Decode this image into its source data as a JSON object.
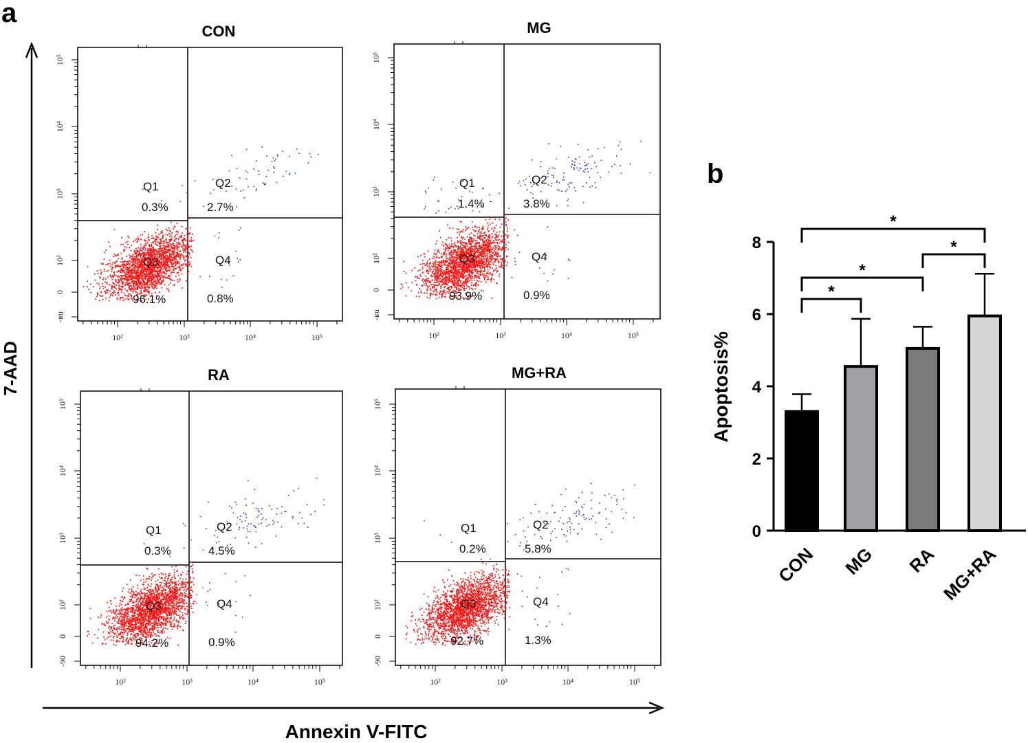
{
  "figure": {
    "panel_a_label": "a",
    "panel_b_label": "b",
    "x_axis_label": "Annexin V-FITC",
    "y_axis_label": "7-AAD"
  },
  "chart_data": [
    {
      "type": "scatter",
      "title": "CON",
      "xlabel": "Annexin V-FITC",
      "ylabel": "7-AAD",
      "x_ticks": [
        "10²",
        "10³",
        "10⁴",
        "10⁵"
      ],
      "y_ticks": [
        "-ʁu",
        "0",
        "10²",
        "10³",
        "10⁴",
        "10⁵"
      ],
      "quadrants": [
        {
          "name": "Q1",
          "percent": "0.3%"
        },
        {
          "name": "Q2",
          "percent": "2.7%"
        },
        {
          "name": "Q3",
          "percent": "96.1%"
        },
        {
          "name": "Q4",
          "percent": "0.8%"
        }
      ]
    },
    {
      "type": "scatter",
      "title": "MG",
      "xlabel": "Annexin V-FITC",
      "ylabel": "7-AAD",
      "x_ticks": [
        "10²",
        "10³",
        "10⁴",
        "10⁵"
      ],
      "y_ticks": [
        "-ʁu",
        "0",
        "10²",
        "10³",
        "10⁴",
        "10⁵"
      ],
      "quadrants": [
        {
          "name": "Q1",
          "percent": "1.4%"
        },
        {
          "name": "Q2",
          "percent": "3.8%"
        },
        {
          "name": "Q3",
          "percent": "93.9%"
        },
        {
          "name": "Q4",
          "percent": "0.9%"
        }
      ]
    },
    {
      "type": "scatter",
      "title": "RA",
      "xlabel": "Annexin V-FITC",
      "ylabel": "7-AAD",
      "x_ticks": [
        "10²",
        "10³",
        "10⁴",
        "10⁵"
      ],
      "y_ticks": [
        "-90",
        "0",
        "10²",
        "10³",
        "10⁴",
        "10⁵"
      ],
      "quadrants": [
        {
          "name": "Q1",
          "percent": "0.3%"
        },
        {
          "name": "Q2",
          "percent": "4.5%"
        },
        {
          "name": "Q3",
          "percent": "94.2%"
        },
        {
          "name": "Q4",
          "percent": "0.9%"
        }
      ]
    },
    {
      "type": "scatter",
      "title": "MG+RA",
      "xlabel": "Annexin V-FITC",
      "ylabel": "7-AAD",
      "x_ticks": [
        "10²",
        "10³",
        "10⁴",
        "10⁵"
      ],
      "y_ticks": [
        "-90",
        "0",
        "10²",
        "10³",
        "10⁴",
        "10⁵"
      ],
      "quadrants": [
        {
          "name": "Q1",
          "percent": "0.2%"
        },
        {
          "name": "Q2",
          "percent": "5.8%"
        },
        {
          "name": "Q3",
          "percent": "92.7%"
        },
        {
          "name": "Q4",
          "percent": "1.3%"
        }
      ]
    },
    {
      "type": "bar",
      "title": "",
      "xlabel": "",
      "ylabel": "Apoptosis%",
      "ylim": [
        0,
        8
      ],
      "y_ticks": [
        0,
        2,
        4,
        6,
        8
      ],
      "categories": [
        "CON",
        "MG",
        "RA",
        "MG+RA"
      ],
      "values": [
        3.3,
        4.55,
        5.05,
        5.95
      ],
      "errors": [
        0.48,
        1.32,
        0.6,
        1.17
      ],
      "colors": [
        "#000000",
        "#a0a0a6",
        "#7b7b7b",
        "#d6d6d6"
      ],
      "significance": [
        {
          "from": "CON",
          "to": "MG",
          "label": "*"
        },
        {
          "from": "CON",
          "to": "RA",
          "label": "*"
        },
        {
          "from": "RA",
          "to": "MG+RA",
          "label": "*"
        },
        {
          "from": "CON",
          "to": "MG+RA",
          "label": "*"
        }
      ]
    }
  ],
  "colors": {
    "live_cells": "#ff1414",
    "apoptotic_cells": "#1e32dc",
    "axis": "#000000"
  }
}
